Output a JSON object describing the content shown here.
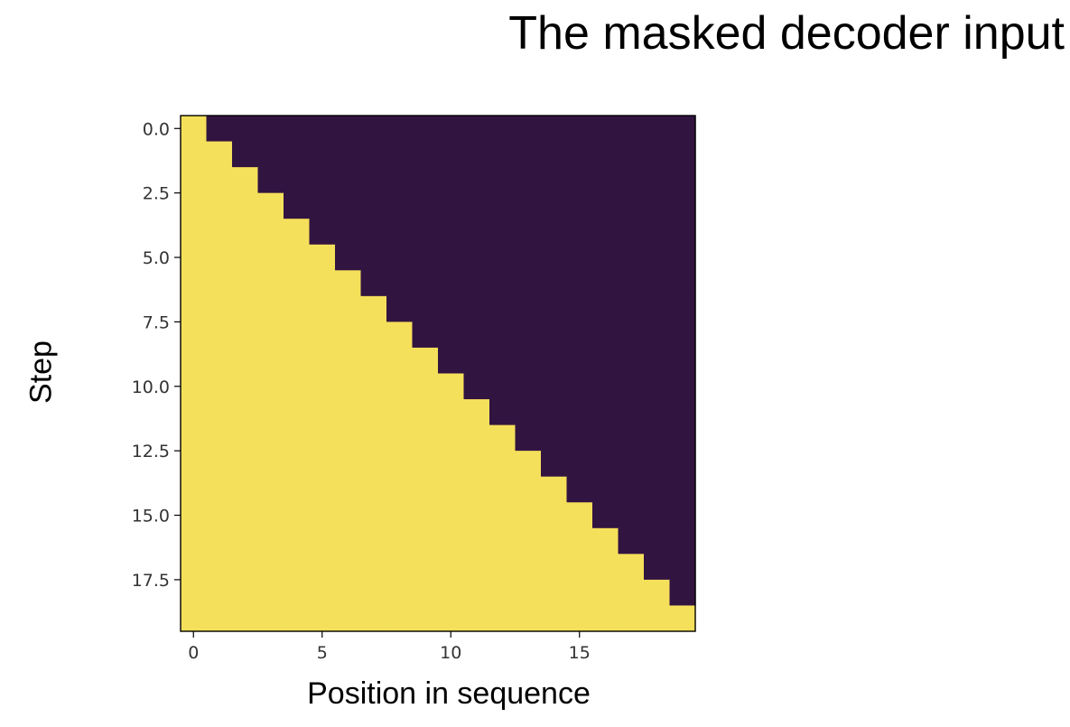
{
  "title": "The masked decoder input",
  "chart_data": {
    "type": "heatmap",
    "title": "",
    "xlabel": "Position in sequence",
    "ylabel": "Step",
    "rows": 20,
    "cols": 20,
    "mask": "lower-triangular (row >= col visible)",
    "values_rule": "value = 1 if col <= row else 0",
    "colors": {
      "visible": "#f5e05b",
      "masked": "#321441"
    },
    "xlim": [
      -0.5,
      19.5
    ],
    "ylim": [
      19.5,
      -0.5
    ],
    "x_ticks": [
      0,
      5,
      10,
      15
    ],
    "x_tick_labels": [
      "0",
      "5",
      "10",
      "15"
    ],
    "y_ticks": [
      0,
      2.5,
      5,
      7.5,
      10,
      12.5,
      15,
      17.5
    ],
    "y_tick_labels": [
      "0.0",
      "2.5",
      "5.0",
      "7.5",
      "10.0",
      "12.5",
      "15.0",
      "17.5"
    ],
    "grid": false,
    "legend": "none"
  }
}
